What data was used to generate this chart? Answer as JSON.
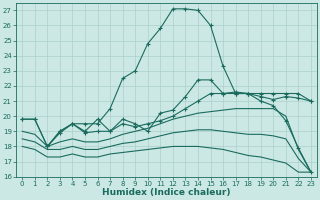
{
  "bg_color": "#cce8e4",
  "grid_color": "#aad0cc",
  "line_color": "#1a6b5e",
  "xlabel": "Humidex (Indice chaleur)",
  "xlim": [
    -0.5,
    23.5
  ],
  "ylim": [
    16,
    27.5
  ],
  "xticks": [
    0,
    1,
    2,
    3,
    4,
    5,
    6,
    7,
    8,
    9,
    10,
    11,
    12,
    13,
    14,
    15,
    16,
    17,
    18,
    19,
    20,
    21,
    22,
    23
  ],
  "yticks": [
    16,
    17,
    18,
    19,
    20,
    21,
    22,
    23,
    24,
    25,
    26,
    27
  ],
  "line1_x": [
    0,
    1,
    2,
    3,
    4,
    5,
    6,
    7,
    8,
    9,
    10,
    11,
    12,
    13,
    14,
    15,
    16,
    17,
    18,
    19,
    20,
    21,
    22,
    23
  ],
  "line1_y": [
    19.8,
    19.8,
    18.0,
    19.0,
    19.5,
    19.5,
    19.5,
    20.5,
    22.5,
    23.0,
    24.8,
    25.8,
    27.1,
    27.1,
    27.0,
    26.0,
    23.3,
    21.5,
    21.5,
    21.0,
    20.7,
    19.7,
    17.9,
    16.3
  ],
  "line2_x": [
    0,
    1,
    2,
    3,
    4,
    5,
    6,
    7,
    8,
    9,
    10,
    11,
    12,
    13,
    14,
    15,
    16,
    17,
    18,
    19,
    20,
    21,
    22,
    23
  ],
  "line2_y": [
    19.8,
    19.8,
    18.0,
    18.9,
    19.5,
    19.0,
    19.8,
    19.0,
    19.8,
    19.5,
    19.0,
    20.2,
    20.4,
    21.3,
    22.4,
    22.4,
    21.5,
    21.6,
    21.5,
    21.3,
    21.1,
    21.3,
    21.2,
    21.0
  ],
  "line3_x": [
    2,
    3,
    4,
    5,
    6,
    7,
    8,
    9,
    10,
    11,
    12,
    13,
    14,
    15,
    16,
    17,
    18,
    19,
    20,
    21,
    22,
    23
  ],
  "line3_y": [
    18.0,
    19.0,
    19.5,
    18.9,
    19.0,
    19.0,
    19.5,
    19.3,
    19.5,
    19.7,
    20.0,
    20.5,
    21.0,
    21.5,
    21.5,
    21.5,
    21.5,
    21.5,
    21.5,
    21.5,
    21.5,
    21.0
  ],
  "line4_x": [
    0,
    1,
    2,
    3,
    4,
    5,
    6,
    7,
    8,
    9,
    10,
    11,
    12,
    13,
    14,
    15,
    16,
    17,
    18,
    19,
    20,
    21,
    22,
    23
  ],
  "line4_y": [
    19.0,
    18.8,
    18.0,
    18.3,
    18.5,
    18.3,
    18.3,
    18.5,
    18.8,
    19.0,
    19.2,
    19.5,
    19.8,
    20.0,
    20.2,
    20.3,
    20.4,
    20.5,
    20.5,
    20.5,
    20.5,
    20.0,
    17.8,
    16.3
  ],
  "line5_x": [
    0,
    1,
    2,
    3,
    4,
    5,
    6,
    7,
    8,
    9,
    10,
    11,
    12,
    13,
    14,
    15,
    16,
    17,
    18,
    19,
    20,
    21,
    22,
    23
  ],
  "line5_y": [
    18.5,
    18.3,
    17.8,
    17.8,
    18.0,
    17.8,
    17.8,
    18.0,
    18.2,
    18.3,
    18.5,
    18.7,
    18.9,
    19.0,
    19.1,
    19.1,
    19.0,
    18.9,
    18.8,
    18.8,
    18.7,
    18.5,
    17.2,
    16.3
  ],
  "line6_x": [
    0,
    1,
    2,
    3,
    4,
    5,
    6,
    7,
    8,
    9,
    10,
    11,
    12,
    13,
    14,
    15,
    16,
    17,
    18,
    19,
    20,
    21,
    22,
    23
  ],
  "line6_y": [
    18.0,
    17.8,
    17.3,
    17.3,
    17.5,
    17.3,
    17.3,
    17.5,
    17.6,
    17.7,
    17.8,
    17.9,
    18.0,
    18.0,
    18.0,
    17.9,
    17.8,
    17.6,
    17.4,
    17.3,
    17.1,
    16.9,
    16.3,
    16.3
  ],
  "tick_fontsize": 5,
  "label_fontsize": 6.5
}
